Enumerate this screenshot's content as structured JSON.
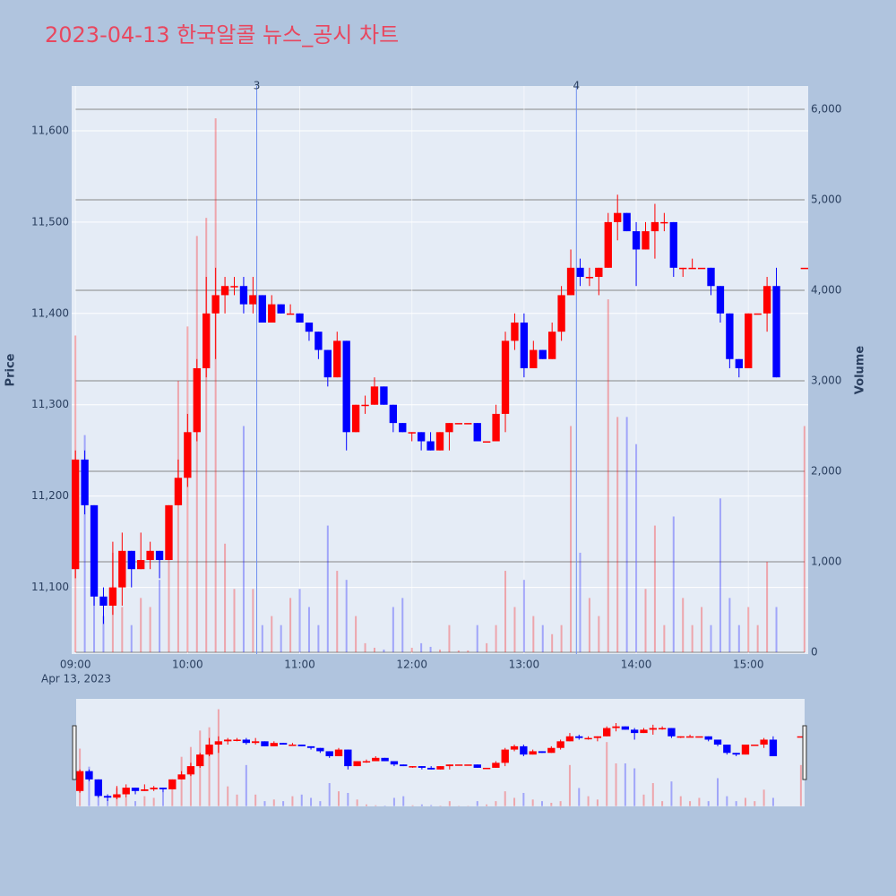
{
  "chart_data": {
    "type": "candlestick",
    "title": "2023-04-13 한국알콜 뉴스_공시 차트",
    "y_label": "Price",
    "y2_label": "Volume",
    "x_sublabel": "Apr 13, 2023",
    "x": [
      "09:00",
      "09:05",
      "09:10",
      "09:15",
      "09:20",
      "09:25",
      "09:30",
      "09:35",
      "09:40",
      "09:45",
      "09:50",
      "09:55",
      "10:00",
      "10:05",
      "10:10",
      "10:15",
      "10:20",
      "10:25",
      "10:30",
      "10:35",
      "10:40",
      "10:45",
      "10:50",
      "10:55",
      "11:00",
      "11:05",
      "11:10",
      "11:15",
      "11:20",
      "11:25",
      "11:30",
      "11:35",
      "11:40",
      "11:45",
      "11:50",
      "11:55",
      "12:00",
      "12:05",
      "12:10",
      "12:15",
      "12:20",
      "12:25",
      "12:30",
      "12:35",
      "12:40",
      "12:45",
      "12:50",
      "12:55",
      "13:00",
      "13:05",
      "13:10",
      "13:15",
      "13:20",
      "13:25",
      "13:30",
      "13:35",
      "13:40",
      "13:45",
      "13:50",
      "13:55",
      "14:00",
      "14:05",
      "14:10",
      "14:15",
      "14:20",
      "14:25",
      "14:30",
      "14:35",
      "14:40",
      "14:45",
      "14:50",
      "14:55",
      "15:00",
      "15:05",
      "15:10",
      "15:15",
      "15:30"
    ],
    "open": [
      11120,
      11240,
      11190,
      11090,
      11080,
      11100,
      11140,
      11120,
      11130,
      11140,
      11130,
      11190,
      11220,
      11270,
      11340,
      11400,
      11420,
      11430,
      11430,
      11410,
      11420,
      11390,
      11410,
      11400,
      11400,
      11390,
      11380,
      11360,
      11330,
      11370,
      11270,
      11300,
      11300,
      11320,
      11300,
      11280,
      11270,
      11270,
      11260,
      11250,
      11270,
      11280,
      11280,
      11280,
      11260,
      11260,
      11290,
      11370,
      11390,
      11340,
      11360,
      11350,
      11380,
      11420,
      11450,
      11440,
      11440,
      11450,
      11500,
      11510,
      11490,
      11470,
      11490,
      11500,
      11500,
      11450,
      11450,
      11450,
      11450,
      11430,
      11400,
      11350,
      11340,
      11400,
      11400,
      11430,
      11450
    ],
    "high": [
      11250,
      11250,
      11190,
      11100,
      11150,
      11160,
      11140,
      11160,
      11150,
      11140,
      11190,
      11240,
      11290,
      11350,
      11440,
      11450,
      11440,
      11440,
      11440,
      11440,
      11420,
      11420,
      11410,
      11410,
      11400,
      11390,
      11380,
      11360,
      11380,
      11370,
      11300,
      11310,
      11330,
      11320,
      11300,
      11280,
      11270,
      11270,
      11270,
      11270,
      11280,
      11280,
      11280,
      11280,
      11260,
      11300,
      11380,
      11400,
      11400,
      11370,
      11360,
      11390,
      11430,
      11470,
      11460,
      11450,
      11450,
      11510,
      11530,
      11510,
      11500,
      11500,
      11520,
      11510,
      11500,
      11450,
      11460,
      11450,
      11450,
      11430,
      11400,
      11350,
      11400,
      11400,
      11440,
      11450,
      11450
    ],
    "low": [
      11110,
      11180,
      11080,
      11060,
      11070,
      11080,
      11100,
      11120,
      11120,
      11110,
      11130,
      11190,
      11210,
      11260,
      11330,
      11350,
      11400,
      11420,
      11400,
      11400,
      11390,
      11390,
      11400,
      11400,
      11390,
      11370,
      11350,
      11320,
      11330,
      11250,
      11270,
      11290,
      11300,
      11300,
      11270,
      11270,
      11260,
      11250,
      11250,
      11250,
      11250,
      11280,
      11280,
      11260,
      11260,
      11260,
      11270,
      11360,
      11330,
      11340,
      11350,
      11350,
      11370,
      11420,
      11430,
      11430,
      11420,
      11450,
      11480,
      11490,
      11430,
      11470,
      11460,
      11490,
      11440,
      11440,
      11450,
      11450,
      11420,
      11390,
      11340,
      11330,
      11340,
      11400,
      11380,
      11330,
      11450
    ],
    "close": [
      11240,
      11190,
      11090,
      11080,
      11100,
      11140,
      11120,
      11130,
      11140,
      11130,
      11190,
      11220,
      11270,
      11340,
      11400,
      11420,
      11430,
      11430,
      11410,
      11420,
      11390,
      11410,
      11400,
      11400,
      11390,
      11380,
      11360,
      11330,
      11370,
      11270,
      11300,
      11300,
      11320,
      11300,
      11280,
      11270,
      11270,
      11260,
      11250,
      11270,
      11280,
      11280,
      11280,
      11260,
      11260,
      11290,
      11370,
      11390,
      11340,
      11360,
      11350,
      11380,
      11420,
      11450,
      11440,
      11440,
      11450,
      11500,
      11510,
      11490,
      11470,
      11490,
      11500,
      11500,
      11450,
      11450,
      11450,
      11450,
      11430,
      11400,
      11350,
      11340,
      11400,
      11400,
      11430,
      11330,
      11450
    ],
    "volume": [
      3500,
      2400,
      1300,
      400,
      1100,
      500,
      300,
      600,
      500,
      800,
      1100,
      3000,
      3600,
      4600,
      4800,
      5900,
      1200,
      700,
      2500,
      700,
      300,
      400,
      300,
      600,
      700,
      500,
      300,
      1400,
      900,
      800,
      400,
      100,
      50,
      30,
      500,
      600,
      50,
      100,
      60,
      30,
      300,
      20,
      20,
      300,
      100,
      300,
      900,
      500,
      800,
      400,
      300,
      200,
      300,
      2500,
      1100,
      600,
      400,
      3900,
      2600,
      2600,
      2300,
      700,
      1400,
      300,
      1500,
      600,
      300,
      500,
      300,
      1700,
      600,
      300,
      500,
      300,
      1000,
      500,
      2500
    ],
    "increasing_color": "#ff0000",
    "decreasing_color": "#0000ff",
    "annotations": [
      {
        "label": "3",
        "x": "10:37"
      },
      {
        "label": "4",
        "x": "13:28"
      }
    ],
    "xlim": [
      "08:58",
      "15:32"
    ],
    "xticks": [
      "09:00",
      "10:00",
      "11:00",
      "12:00",
      "13:00",
      "14:00",
      "15:00"
    ],
    "ylim": [
      11027,
      11649
    ],
    "yticks": [
      {
        "value": 11100,
        "label": "11,100"
      },
      {
        "value": 11200,
        "label": "11,200"
      },
      {
        "value": 11300,
        "label": "11,300"
      },
      {
        "value": 11400,
        "label": "11,400"
      },
      {
        "value": 11500,
        "label": "11,500"
      },
      {
        "value": 11600,
        "label": "11,600"
      }
    ],
    "y2lim": [
      -20,
      6257
    ],
    "y2ticks": [
      0,
      {
        "value": 1000,
        "label": "1,000"
      },
      {
        "value": 2000,
        "label": "2,000"
      },
      {
        "value": 3000,
        "label": "3,000"
      },
      {
        "value": 4000,
        "label": "4,000"
      },
      {
        "value": 5000,
        "label": "5,000"
      },
      {
        "value": 6000,
        "label": "6,000"
      }
    ]
  }
}
